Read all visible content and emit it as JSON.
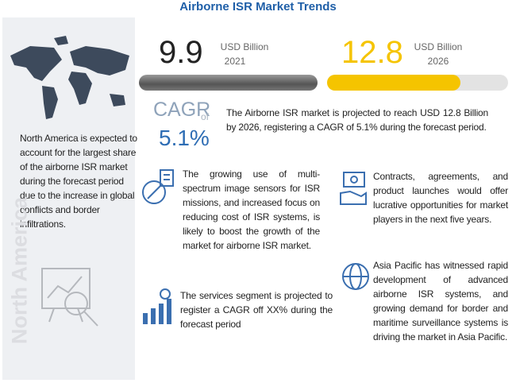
{
  "title": "Airborne ISR Market Trends",
  "left": {
    "text": "North America is expected to account for the largest share of the airborne ISR market during the forecast period due to the increase in global conflicts and border infiltrations.",
    "region": "North America"
  },
  "stats": [
    {
      "value": 9.9,
      "unit": "USD Billion",
      "year": 2021
    },
    {
      "value": 12.8,
      "unit": "USD Billion",
      "year": 2026
    }
  ],
  "cagr": {
    "label": "CAGR",
    "of": "of",
    "value": "5.1%"
  },
  "summary": "The Airborne ISR market is projected to reach USD 12.8 Billion by 2026, registering a CAGR of 5.1% during the forecast period.",
  "points": [
    "The growing use of multi-spectrum image sensors for ISR missions, and increased focus on reducing cost of ISR systems, is likely to boost the growth of the market for airborne ISR market.",
    "Contracts, agreements, and product launches would offer lucrative opportunities for market players in the next five years.",
    "The services segment is projected to register a CAGR off XX% during the forecast period",
    "Asia Pacific has witnessed rapid development of advanced airborne ISR systems, and growing demand for border and maritime surveillance systems is driving the market in Asia Pacific."
  ]
}
